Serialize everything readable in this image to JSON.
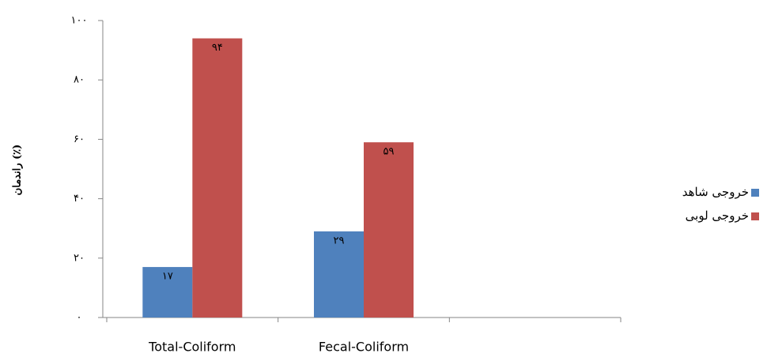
{
  "chart_data": {
    "type": "bar",
    "y_label": "راندمان (٪)",
    "categories": [
      "Total-Coliform",
      "Fecal-Coliform",
      null
    ],
    "series": [
      {
        "name": "خروجی شاهد",
        "color": "#4f81bd",
        "values": [
          17,
          29,
          null
        ],
        "value_labels": [
          "۱۷",
          "۲۹",
          null
        ]
      },
      {
        "name": "خروجی لوبی",
        "color": "#c0504d",
        "values": [
          94,
          59,
          null
        ],
        "value_labels": [
          "۹۴",
          "۵۹",
          null
        ]
      }
    ],
    "ylim": [
      0,
      100
    ],
    "yticks": [
      {
        "value": 0,
        "label": "۰"
      },
      {
        "value": 20,
        "label": "۲۰"
      },
      {
        "value": 40,
        "label": "۴۰"
      },
      {
        "value": 60,
        "label": "۶۰"
      },
      {
        "value": 80,
        "label": "۸۰"
      },
      {
        "value": 100,
        "label": "۱۰۰"
      }
    ],
    "grid": false
  }
}
